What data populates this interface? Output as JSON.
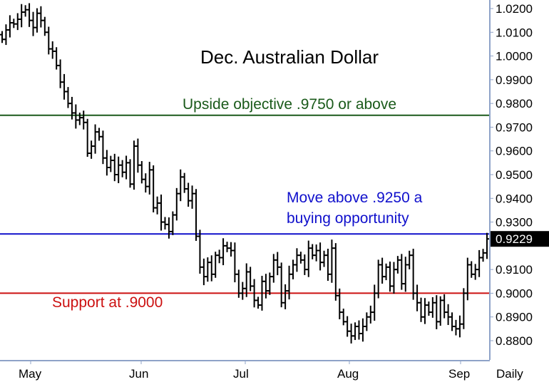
{
  "chart_data": {
    "type": "bar",
    "bar_style": "ohlc",
    "title": "Dec. Australian Dollar",
    "period_label": "Daily",
    "ylim": [
      0.875,
      1.0225
    ],
    "y_ticks": [
      "1.0200",
      "1.0100",
      "1.0000",
      "0.9900",
      "0.9800",
      "0.9700",
      "0.9600",
      "0.9500",
      "0.9400",
      "0.9300",
      "0.9100",
      "0.9000",
      "0.8900",
      "0.8800"
    ],
    "x_ticks": [
      "May",
      "Jun",
      "Jul",
      "Aug",
      "Sep"
    ],
    "last_price": "0.9229",
    "grid": false,
    "horizontal_lines": [
      {
        "value": 0.975,
        "color": "#1a5a1a",
        "label": "Upside objective .9750 or above"
      },
      {
        "value": 0.925,
        "color": "#1010cc",
        "label_lines": [
          "Move above .9250 a",
          "buying opportunity"
        ]
      },
      {
        "value": 0.9,
        "color": "#cc1010",
        "label": "Support at .9000"
      }
    ],
    "series": [
      {
        "close": [
          1.007,
          1.011,
          1.014,
          1.0135,
          1.0155,
          1.0185,
          1.0195,
          1.015,
          1.012,
          1.018,
          1.015,
          1.01,
          1.003,
          1.002,
          0.996,
          0.989,
          0.985,
          0.98,
          0.976,
          0.973,
          0.974,
          0.972,
          0.959,
          0.962,
          0.968,
          0.966,
          0.957,
          0.953,
          0.956,
          0.95,
          0.954,
          0.951,
          0.955,
          0.946,
          0.962,
          0.954,
          0.948,
          0.945,
          0.952,
          0.936,
          0.938,
          0.93,
          0.929,
          0.926,
          0.933,
          0.942,
          0.949,
          0.944,
          0.939,
          0.942,
          0.924,
          0.911,
          0.907,
          0.913,
          0.908,
          0.916,
          0.915,
          0.92,
          0.919,
          0.918,
          0.908,
          0.9,
          0.902,
          0.909,
          0.903,
          0.897,
          0.895,
          0.905,
          0.901,
          0.907,
          0.914,
          0.911,
          0.896,
          0.901,
          0.908,
          0.912,
          0.916,
          0.914,
          0.91,
          0.919,
          0.916,
          0.918,
          0.913,
          0.916,
          0.908,
          0.919,
          0.899,
          0.892,
          0.888,
          0.884,
          0.882,
          0.886,
          0.883,
          0.886,
          0.89,
          0.892,
          0.9,
          0.912,
          0.907,
          0.911,
          0.903,
          0.91,
          0.914,
          0.904,
          0.912,
          0.916,
          0.9,
          0.896,
          0.89,
          0.895,
          0.892,
          0.896,
          0.888,
          0.897,
          0.892,
          0.89,
          0.886,
          0.885,
          0.887,
          0.9,
          0.912,
          0.908,
          0.91,
          0.915,
          0.917,
          0.9229
        ]
      }
    ]
  }
}
